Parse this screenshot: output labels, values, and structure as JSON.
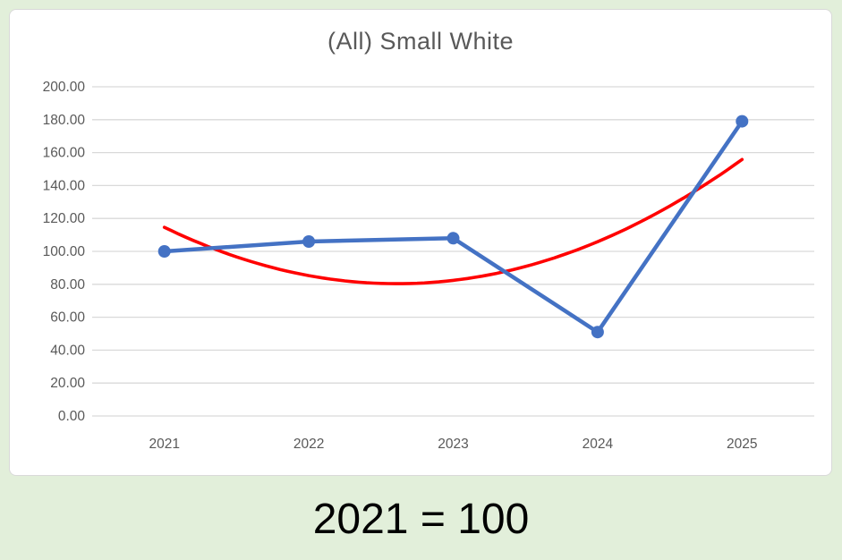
{
  "page": {
    "background_color": "#E2EFDA"
  },
  "chart_card": {
    "background_color": "#FFFFFF",
    "border_color": "#D9D9D9"
  },
  "chart_data": {
    "type": "line",
    "title": "(All) Small White",
    "title_color": "#595959",
    "categories": [
      "2021",
      "2022",
      "2023",
      "2024",
      "2025"
    ],
    "series": [
      {
        "color": "#4472C4",
        "marker": "circle",
        "values": [
          100,
          106,
          108,
          51,
          179
        ]
      }
    ],
    "trendline": {
      "type": "polynomial",
      "order": 2,
      "color": "#FF0000",
      "fit_of_series": 0
    },
    "xlabel": "",
    "ylabel": "",
    "ylim": [
      0,
      200
    ],
    "ytick_step": 20,
    "ytick_labels": [
      "0.00",
      "20.00",
      "40.00",
      "60.00",
      "80.00",
      "100.00",
      "120.00",
      "140.00",
      "160.00",
      "180.00",
      "200.00"
    ],
    "grid": true,
    "gridline_color": "#D9D9D9",
    "axis_label_color": "#595959",
    "legend": "none",
    "annotation": "2021 = 100",
    "annotation_color": "#000000"
  }
}
